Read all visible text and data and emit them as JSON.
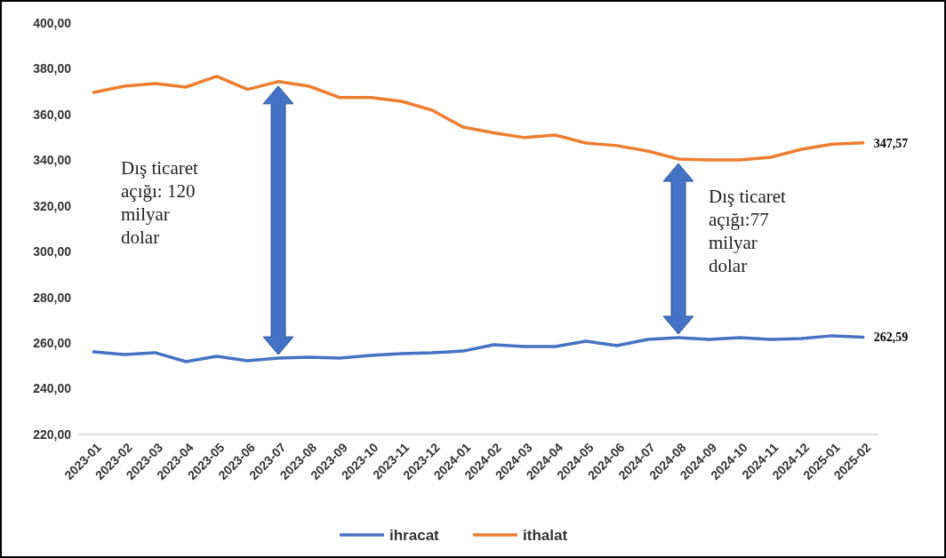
{
  "chart_data": {
    "type": "line",
    "categories": [
      "2023-01",
      "2023-02",
      "2023-03",
      "2023-04",
      "2023-05",
      "2023-06",
      "2023-07",
      "2023-08",
      "2023-09",
      "2023-10",
      "2023-11",
      "2023-12",
      "2024-01",
      "2024-02",
      "2024-03",
      "2024-04",
      "2024-05",
      "2024-06",
      "2024-07",
      "2024-08",
      "2024-09",
      "2024-10",
      "2024-11",
      "2024-12",
      "2025-01",
      "2025-02"
    ],
    "series": [
      {
        "name": "ihracat",
        "color": "#4472c4",
        "values": [
          256.2,
          255,
          255.8,
          251.9,
          254.2,
          252.3,
          253.4,
          253.8,
          253.4,
          254.6,
          255.4,
          255.8,
          256.5,
          259.3,
          258.5,
          258.5,
          260.8,
          258.9,
          261.6,
          262.4,
          261.6,
          262.4,
          261.6,
          262,
          263.2,
          262.59
        ],
        "value_labels": [
          null,
          null,
          null,
          null,
          null,
          null,
          null,
          null,
          null,
          null,
          null,
          null,
          null,
          null,
          null,
          null,
          null,
          null,
          null,
          null,
          null,
          null,
          null,
          null,
          null,
          "262,59"
        ]
      },
      {
        "name": "ithalat",
        "color": "#ed7d31",
        "values": [
          369.7,
          372.4,
          373.6,
          372,
          376.7,
          371,
          374.4,
          372.4,
          367.4,
          367.4,
          365.8,
          361.9,
          354.5,
          352,
          349.9,
          351,
          347.5,
          346.4,
          344,
          340.5,
          340.1,
          340.1,
          341.3,
          344.8,
          347,
          347.57
        ],
        "value_labels": [
          null,
          null,
          null,
          null,
          null,
          null,
          null,
          null,
          null,
          null,
          null,
          null,
          null,
          null,
          null,
          null,
          null,
          null,
          null,
          null,
          null,
          null,
          null,
          null,
          null,
          "347,57"
        ]
      }
    ],
    "ylim": [
      220,
      400
    ],
    "yticks": [
      {
        "value": 220,
        "label": "220,00"
      },
      {
        "value": 240,
        "label": "240,00"
      },
      {
        "value": 260,
        "label": "260,00"
      },
      {
        "value": 280,
        "label": "280,00"
      },
      {
        "value": 300,
        "label": "300,00"
      },
      {
        "value": 320,
        "label": "320,00"
      },
      {
        "value": 340,
        "label": "340,00"
      },
      {
        "value": 360,
        "label": "360,00"
      },
      {
        "value": 380,
        "label": "380,00"
      },
      {
        "value": 400,
        "label": "400,00"
      }
    ],
    "annotations": [
      "Dış ticaret\naçığı: 120\nmilyar\ndolar",
      "Dış ticaret\naçığı:77\nmilyar\ndolar"
    ],
    "grid": false,
    "legend": "bottom",
    "marker": "none",
    "line_style": "solid"
  }
}
